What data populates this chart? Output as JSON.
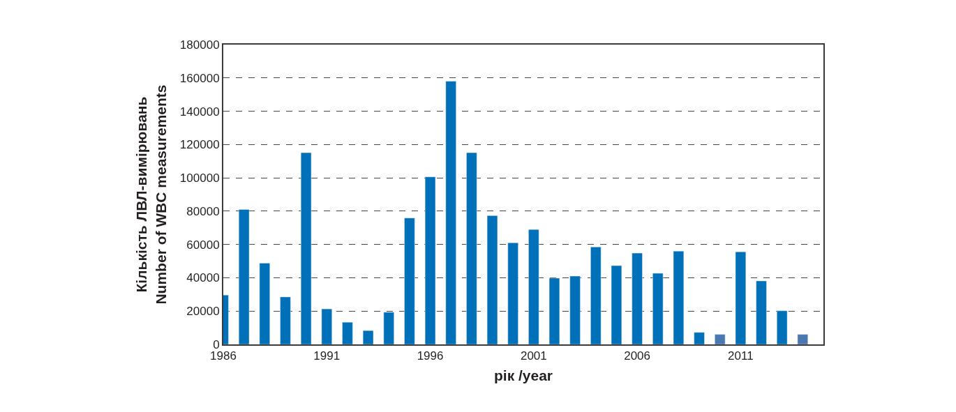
{
  "chart_data": {
    "type": "bar",
    "xlabel": "рік /year",
    "ylabel": "Кількість ЛВЛ-вимірювань\nNumber of WBC measurements",
    "x": [
      1986,
      1987,
      1988,
      1989,
      1990,
      1991,
      1992,
      1993,
      1994,
      1995,
      1996,
      1997,
      1998,
      1999,
      2000,
      2001,
      2002,
      2003,
      2004,
      2005,
      2006,
      2007,
      2008,
      2009,
      2010,
      2011,
      2012,
      2013,
      2014
    ],
    "values": [
      29600,
      81000,
      48800,
      28500,
      115100,
      21300,
      13300,
      8300,
      19300,
      75900,
      100600,
      158000,
      115100,
      77300,
      61000,
      69000,
      39800,
      41000,
      58500,
      47300,
      54800,
      42700,
      56000,
      7200,
      6000,
      55600,
      38100,
      20200,
      6000
    ],
    "colors": [
      "#0070b8",
      "#0070b8",
      "#0070b8",
      "#0070b8",
      "#0070b8",
      "#0070b8",
      "#0070b8",
      "#0070b8",
      "#0070b8",
      "#0070b8",
      "#0070b8",
      "#0070b8",
      "#0070b8",
      "#0070b8",
      "#0070b8",
      "#0070b8",
      "#0070b8",
      "#0070b8",
      "#0070b8",
      "#0070b8",
      "#0070b8",
      "#0070b8",
      "#0070b8",
      "#0070b8",
      "#4a78b0",
      "#0070b8",
      "#0070b8",
      "#0070b8",
      "#4a78b0"
    ],
    "xlim": [
      1986,
      2015
    ],
    "xticks": [
      1986,
      1991,
      1996,
      2001,
      2006,
      2011
    ],
    "ylim": [
      0,
      180000
    ],
    "yticks": [
      0,
      20000,
      40000,
      60000,
      80000,
      100000,
      120000,
      140000,
      160000,
      180000
    ],
    "grid": "y",
    "legend": false
  }
}
